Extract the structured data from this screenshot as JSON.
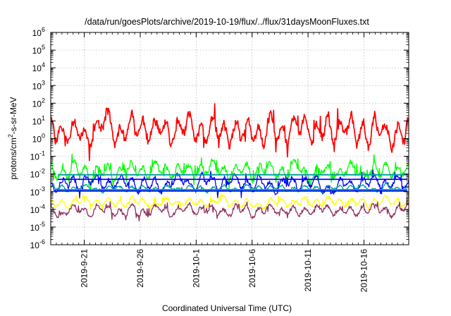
{
  "chart_data": {
    "type": "line",
    "title": "/data/run/goesPlots/archive/2019-10-19/flux/../flux/31daysMoonFluxes.txt",
    "xlabel": "Coordinated Universal Time (UTC)",
    "ylabel_main": "protons/cm",
    "ylabel_sup": "2",
    "ylabel_rest": "-s-sr-MeV",
    "yscale": "log",
    "ylim": [
      1e-06,
      1000000.0
    ],
    "xlim": [
      "2019-09-18",
      "2019-10-20"
    ],
    "grid": true,
    "y_ticks": [
      {
        "value": 1e-06,
        "base": "10",
        "exp": "-6"
      },
      {
        "value": 1e-05,
        "base": "10",
        "exp": "-5"
      },
      {
        "value": 0.0001,
        "base": "10",
        "exp": "-4"
      },
      {
        "value": 0.001,
        "base": "10",
        "exp": "-3"
      },
      {
        "value": 0.01,
        "base": "10",
        "exp": "-2"
      },
      {
        "value": 0.1,
        "base": "10",
        "exp": "-1"
      },
      {
        "value": 1,
        "base": "10",
        "exp": "0"
      },
      {
        "value": 10,
        "base": "10",
        "exp": "1"
      },
      {
        "value": 100,
        "base": "10",
        "exp": "2"
      },
      {
        "value": 1000,
        "base": "10",
        "exp": "3"
      },
      {
        "value": 10000,
        "base": "10",
        "exp": "4"
      },
      {
        "value": 100000,
        "base": "10",
        "exp": "5"
      },
      {
        "value": 1000000,
        "base": "10",
        "exp": "6"
      }
    ],
    "x_ticks": [
      "2019-9-21",
      "2019-9-26",
      "2019-10-1",
      "2019-10-6",
      "2019-10-11",
      "2019-10-16"
    ],
    "x_tick_dates": [
      "2019-09-21",
      "2019-09-26",
      "2019-10-01",
      "2019-10-06",
      "2019-10-11",
      "2019-10-16"
    ],
    "series": [
      {
        "color": "#ff0000",
        "base": 3,
        "amp": 0.55,
        "seed": 11,
        "spike": 0.15
      },
      {
        "color": "#00ff00",
        "base": 0.015,
        "amp": 0.32,
        "seed": 23,
        "spike": 0.3
      },
      {
        "color": "#0000ff",
        "base": 0.003,
        "amp": 0.28,
        "seed": 37,
        "spike": 0.2
      },
      {
        "color": "#00a0a0",
        "base": 0.0015,
        "amp": 0.12,
        "seed": 41,
        "spike": 0.05
      },
      {
        "color": "#ffff00",
        "base": 0.00025,
        "amp": 0.18,
        "seed": 53,
        "spike": 0.2
      },
      {
        "color": "#903060",
        "base": 9e-05,
        "amp": 0.2,
        "seed": 67,
        "spike": 0.25
      }
    ],
    "flat_lines": [
      {
        "color": "#00a0a0",
        "value": 0.009
      },
      {
        "color": "#0000ff",
        "value": 0.005
      },
      {
        "color": "#0000ff",
        "value": 0.0011
      },
      {
        "color": "#00a0a0",
        "value": 0.0013
      }
    ],
    "colors": {
      "background": "#ffffff",
      "axis": "#000000",
      "grid": "#b0b0b0"
    }
  }
}
